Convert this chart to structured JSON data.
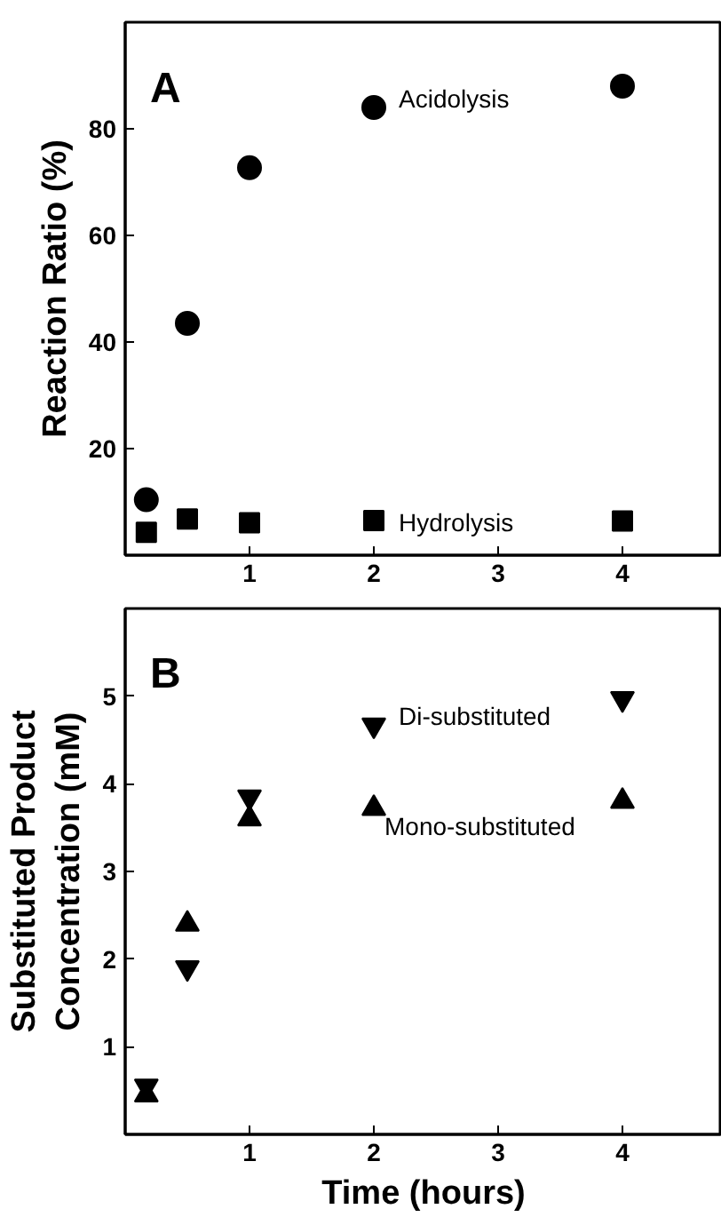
{
  "chart_data": [
    {
      "type": "scatter",
      "title": "A",
      "ylabel": "Reaction Ratio (%)",
      "xlim": [
        0,
        4.8
      ],
      "xticks": [
        1,
        2,
        3,
        4
      ],
      "ylim": [
        0,
        100
      ],
      "yticks": [
        20,
        40,
        60,
        80
      ],
      "grid": false,
      "series": [
        {
          "name": "Acidolysis",
          "color": "#000000",
          "marker": "circle",
          "x": [
            0.17,
            0.5,
            1,
            2,
            4
          ],
          "values": [
            10.4,
            43.5,
            72.7,
            84,
            88
          ]
        },
        {
          "name": "Hydrolysis",
          "color": "#000000",
          "marker": "square",
          "x": [
            0.17,
            0.5,
            1,
            2,
            4
          ],
          "values": [
            4.3,
            6.8,
            6.1,
            6.5,
            6.4
          ]
        }
      ]
    },
    {
      "type": "scatter",
      "title": "B",
      "xlabel": "Time (hours)",
      "ylabel": "Substituted Product\nConcentration (mM)",
      "xlim": [
        0,
        4.8
      ],
      "xticks": [
        1,
        2,
        3,
        4
      ],
      "ylim": [
        0,
        6
      ],
      "yticks": [
        1,
        2,
        3,
        4,
        5
      ],
      "grid": false,
      "series": [
        {
          "name": "Di-substituted",
          "color": "#000000",
          "x": [
            0.17,
            0.5,
            1,
            2,
            4
          ],
          "values": [
            0.55,
            1.9,
            3.85,
            4.67,
            4.97
          ]
        },
        {
          "name": "Mono-substituted",
          "color": "#000000",
          "marker": "triangle",
          "x": [
            0.17,
            0.5,
            1,
            2,
            4
          ],
          "values": [
            0.45,
            2.4,
            3.6,
            3.72,
            3.8
          ]
        }
      ]
    }
  ]
}
